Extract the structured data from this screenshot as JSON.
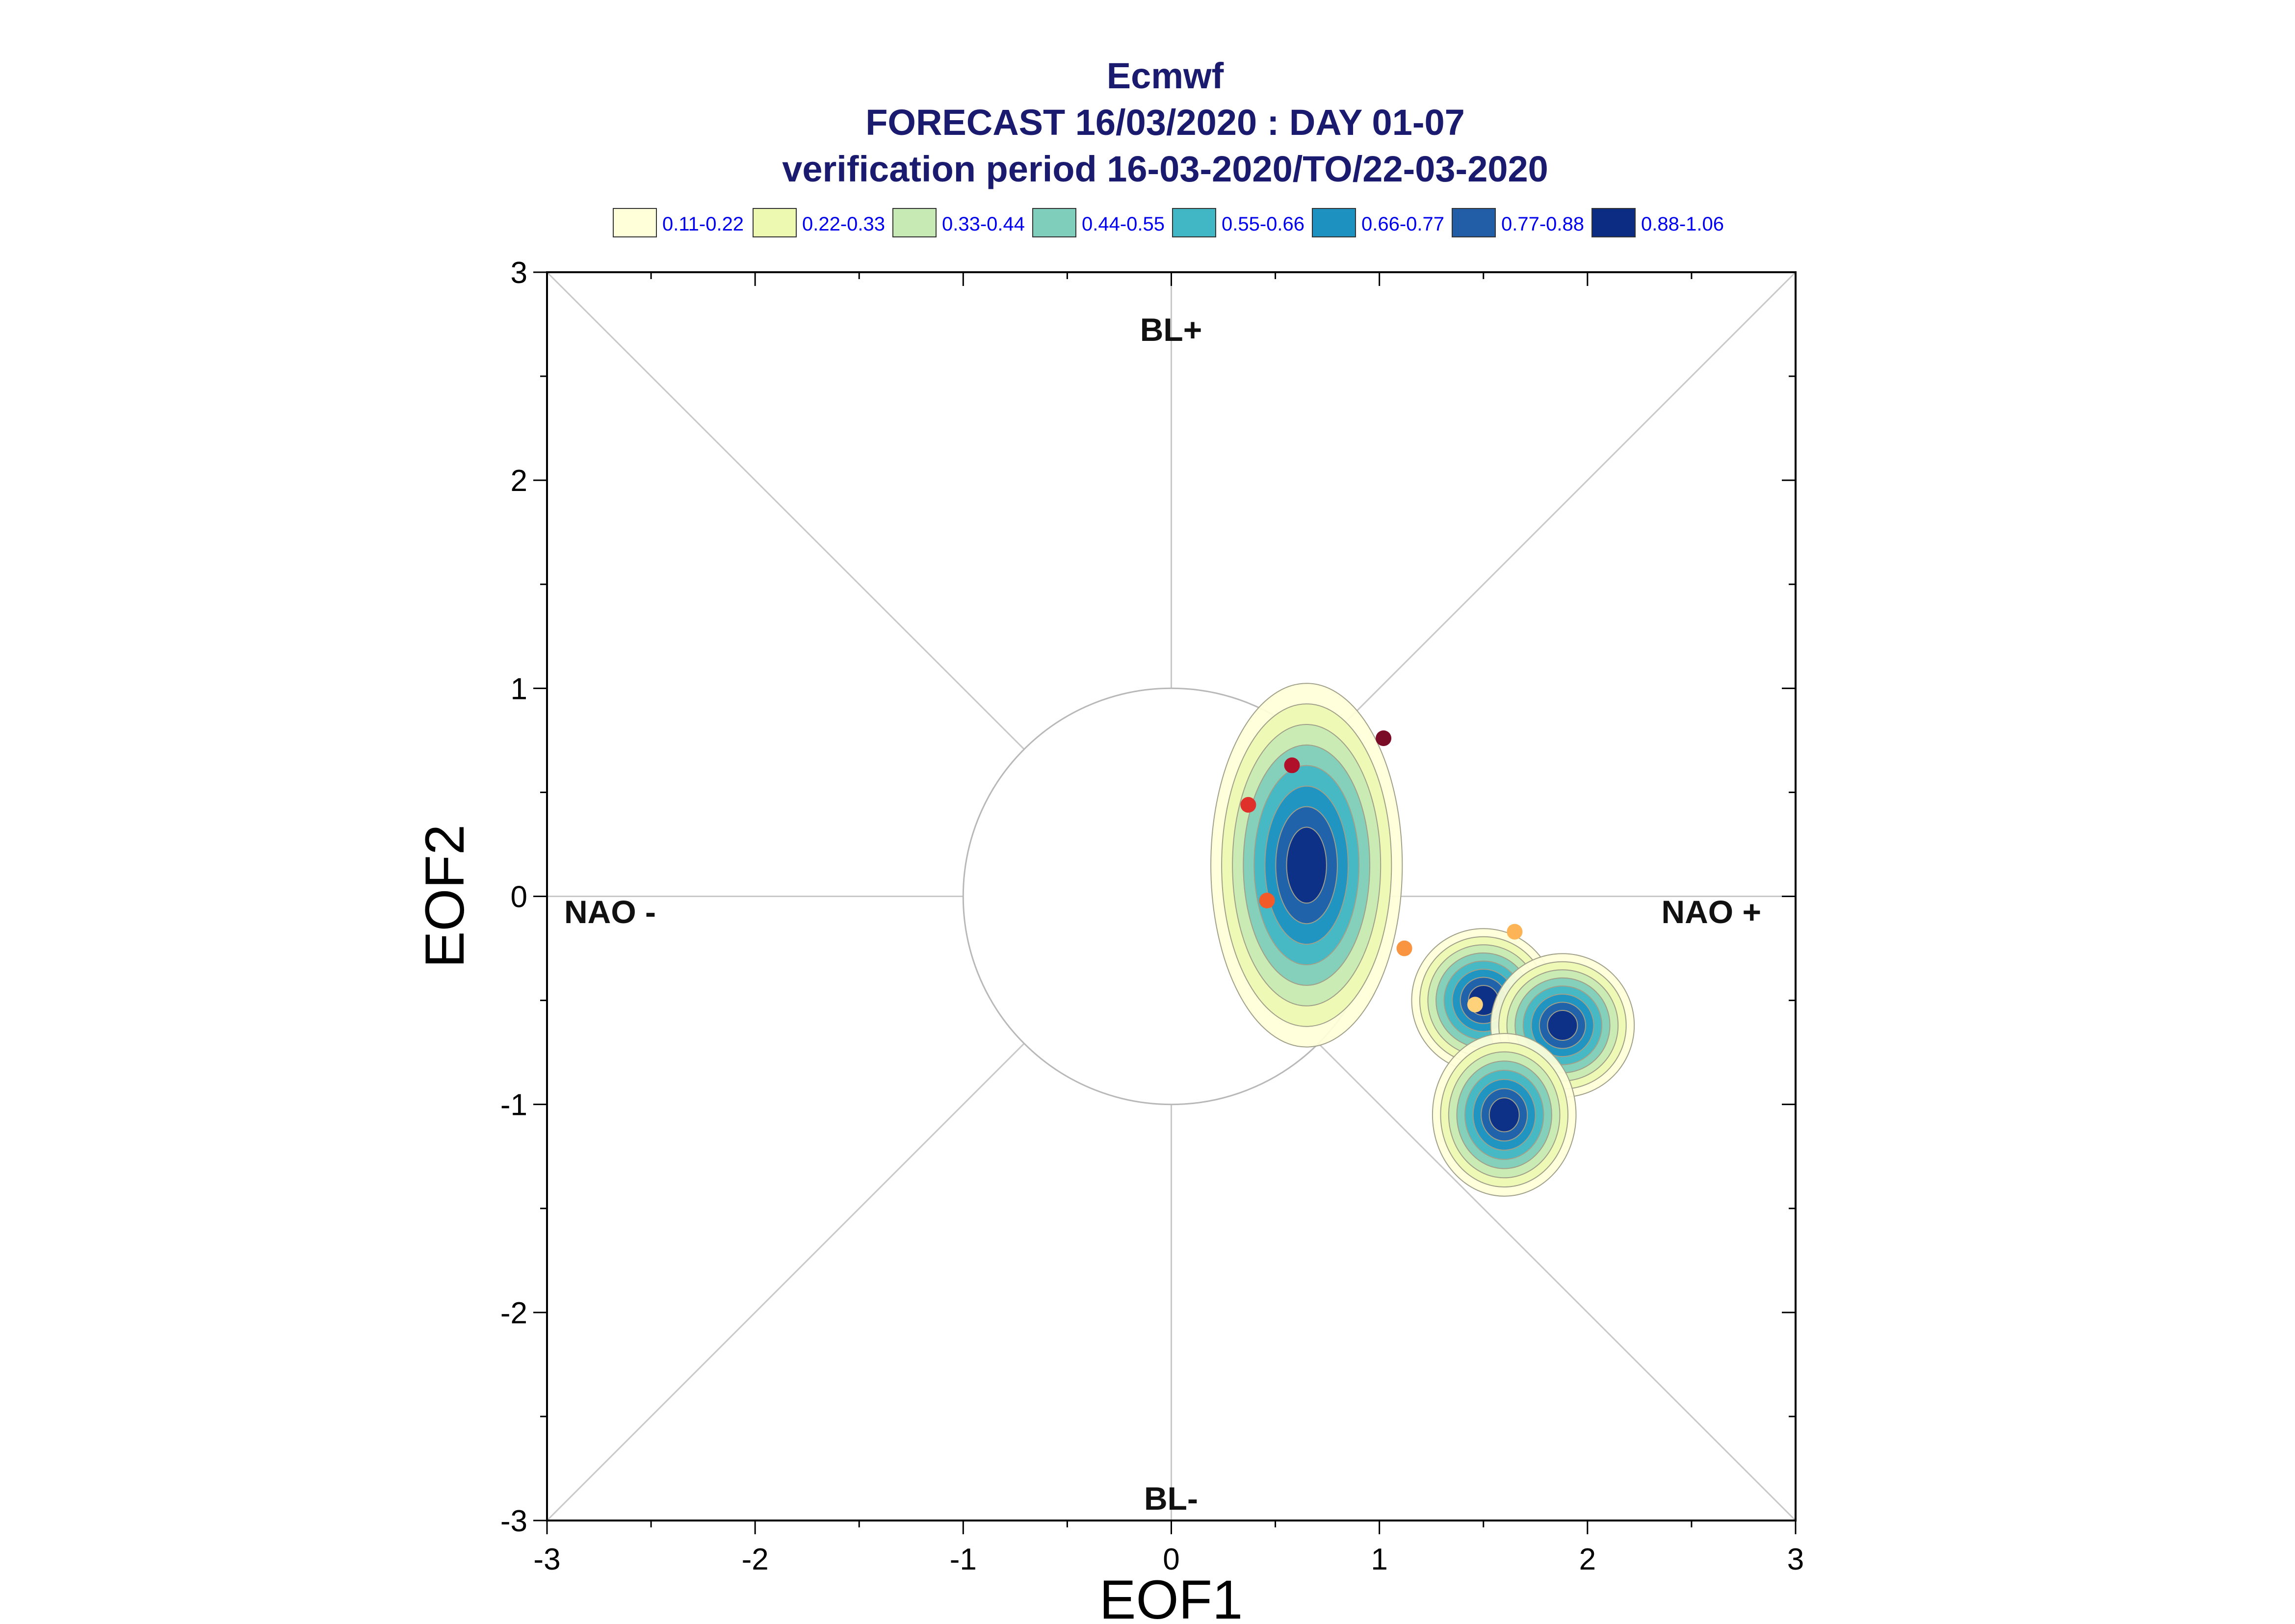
{
  "chart_data": {
    "type": "scatter",
    "title_lines": [
      "Ecmwf",
      "FORECAST 16/03/2020 : DAY 01-07",
      "verification period 16-03-2020/TO/22-03-2020"
    ],
    "xlabel": "EOF1",
    "ylabel": "EOF2",
    "xlim": [
      -3,
      3
    ],
    "ylim": [
      -3,
      3
    ],
    "x_ticks": [
      "-3",
      "-2",
      "-1",
      "0",
      "1",
      "2",
      "3"
    ],
    "y_ticks": [
      "-3",
      "-2",
      "-1",
      "0",
      "1",
      "2",
      "3"
    ],
    "grid": false,
    "legend_position": "top",
    "region_labels": {
      "top": "BL+",
      "bottom": "BL-",
      "left": "NAO -",
      "right": "NAO +"
    },
    "reference_circle_radius": 1,
    "density_levels": [
      {
        "label": "0.11-0.22",
        "color": "#ffffd9"
      },
      {
        "label": "0.22-0.33",
        "color": "#edf8b1"
      },
      {
        "label": "0.33-0.44",
        "color": "#c7e9b4"
      },
      {
        "label": "0.44-0.55",
        "color": "#7fcdbb"
      },
      {
        "label": "0.55-0.66",
        "color": "#41b6c4"
      },
      {
        "label": "0.66-0.77",
        "color": "#1d91c0"
      },
      {
        "label": "0.77-0.88",
        "color": "#225ea8"
      },
      {
        "label": "0.88-1.06",
        "color": "#0c2c84"
      }
    ],
    "density_clusters": [
      {
        "name": "cluster-1",
        "center": [
          0.65,
          0.15
        ],
        "sx": 0.2,
        "sy": 0.38,
        "max_level": 8
      },
      {
        "name": "cluster-2",
        "center": [
          1.5,
          -0.5
        ],
        "sx": 0.15,
        "sy": 0.15,
        "max_level": 8
      },
      {
        "name": "cluster-3",
        "center": [
          1.88,
          -0.62
        ],
        "sx": 0.15,
        "sy": 0.15,
        "max_level": 8
      },
      {
        "name": "cluster-4",
        "center": [
          1.6,
          -1.05
        ],
        "sx": 0.15,
        "sy": 0.17,
        "max_level": 8
      }
    ],
    "trajectory_points": [
      {
        "x": 1.02,
        "y": 0.76,
        "color": "#7a0c28"
      },
      {
        "x": 0.58,
        "y": 0.63,
        "color": "#b0102a"
      },
      {
        "x": 0.37,
        "y": 0.44,
        "color": "#e0302a"
      },
      {
        "x": 0.46,
        "y": -0.02,
        "color": "#f25a2a"
      },
      {
        "x": 1.12,
        "y": -0.25,
        "color": "#f99440"
      },
      {
        "x": 1.65,
        "y": -0.17,
        "color": "#fcb456"
      },
      {
        "x": 1.46,
        "y": -0.52,
        "color": "#fdd27a"
      }
    ]
  }
}
